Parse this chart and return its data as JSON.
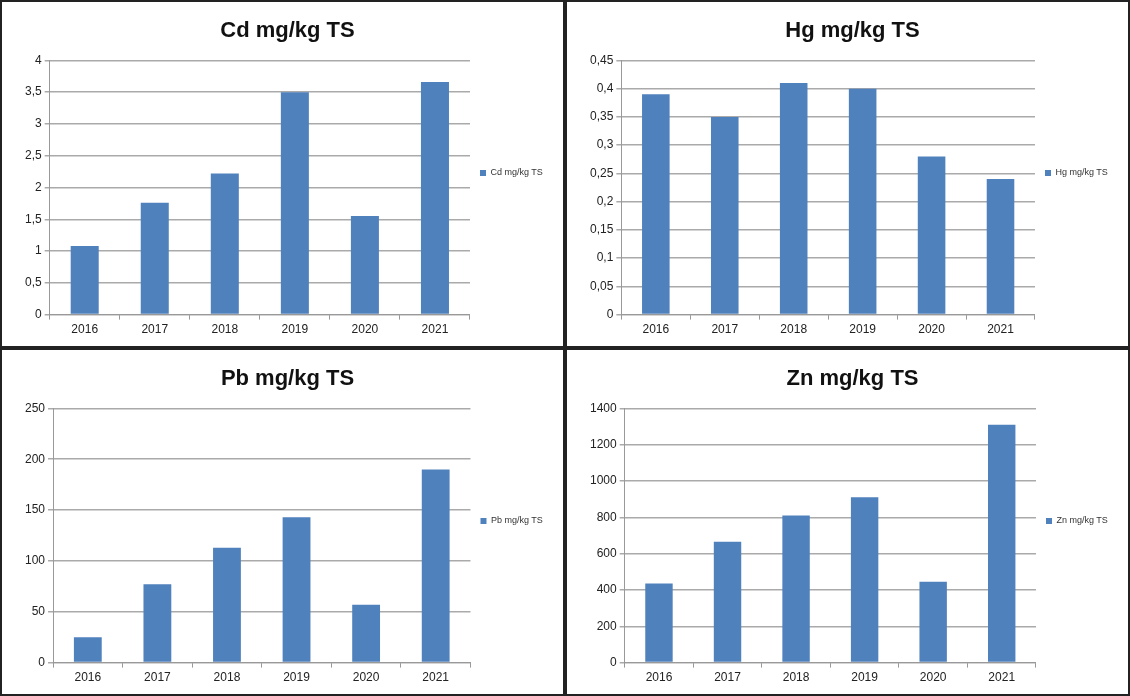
{
  "chart_data": [
    {
      "type": "bar",
      "title": "Cd mg/kg TS",
      "categories": [
        "2016",
        "2017",
        "2018",
        "2019",
        "2020",
        "2021"
      ],
      "series": [
        {
          "name": "Cd mg/kg TS",
          "color": "#4f81bd",
          "values": [
            1.08,
            1.76,
            2.22,
            3.5,
            1.55,
            3.66
          ]
        }
      ],
      "ylim": [
        0,
        4
      ],
      "yticks": [
        0,
        {
          "value": 0.5,
          "label": "0,5"
        },
        1,
        {
          "value": 1.5,
          "label": "1,5"
        },
        2,
        {
          "value": 2.5,
          "label": "2,5"
        },
        3,
        {
          "value": 3.5,
          "label": "3,5"
        },
        4
      ],
      "grid": "y",
      "legend": "right"
    },
    {
      "type": "bar",
      "title": "Hg mg/kg TS",
      "categories": [
        "2016",
        "2017",
        "2018",
        "2019",
        "2020",
        "2021"
      ],
      "series": [
        {
          "name": "Hg mg/kg TS",
          "color": "#4f81bd",
          "values": [
            0.39,
            0.35,
            0.41,
            0.4,
            0.28,
            0.24
          ]
        }
      ],
      "ylim": [
        0,
        0.45
      ],
      "yticks": [
        0,
        {
          "value": 0.05,
          "label": "0,05"
        },
        {
          "value": 0.1,
          "label": "0,1"
        },
        {
          "value": 0.15,
          "label": "0,15"
        },
        {
          "value": 0.2,
          "label": "0,2"
        },
        {
          "value": 0.25,
          "label": "0,25"
        },
        {
          "value": 0.3,
          "label": "0,3"
        },
        {
          "value": 0.35,
          "label": "0,35"
        },
        {
          "value": 0.4,
          "label": "0,4"
        },
        {
          "value": 0.45,
          "label": "0,45"
        }
      ],
      "grid": "y",
      "legend": "right"
    },
    {
      "type": "bar",
      "title": "Pb mg/kg TS",
      "categories": [
        "2016",
        "2017",
        "2018",
        "2019",
        "2020",
        "2021"
      ],
      "series": [
        {
          "name": "Pb mg/kg TS",
          "color": "#4f81bd",
          "values": [
            25,
            77,
            113,
            143,
            57,
            190
          ]
        }
      ],
      "ylim": [
        0,
        250
      ],
      "yticks": [
        0,
        50,
        100,
        150,
        200,
        250
      ],
      "grid": "y",
      "legend": "right"
    },
    {
      "type": "bar",
      "title": "Zn mg/kg TS",
      "categories": [
        "2016",
        "2017",
        "2018",
        "2019",
        "2020",
        "2021"
      ],
      "series": [
        {
          "name": "Zn mg/kg TS",
          "color": "#4f81bd",
          "values": [
            435,
            665,
            810,
            910,
            445,
            1310
          ]
        }
      ],
      "ylim": [
        0,
        1400
      ],
      "yticks": [
        0,
        200,
        400,
        600,
        800,
        1000,
        1200,
        1400
      ],
      "grid": "y",
      "legend": "right"
    }
  ]
}
